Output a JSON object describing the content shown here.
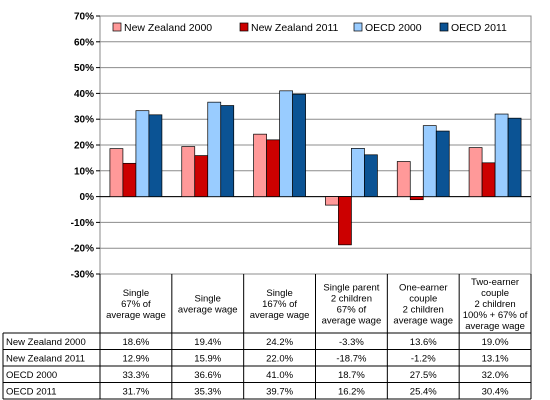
{
  "chart_data": {
    "type": "bar",
    "title": "",
    "xlabel": "",
    "ylabel": "",
    "ylim": [
      -30,
      70
    ],
    "yticks": [
      "-30%",
      "-20%",
      "-10%",
      "0%",
      "10%",
      "20%",
      "30%",
      "40%",
      "50%",
      "60%",
      "70%"
    ],
    "grid": "horizontal",
    "legend_position": "top",
    "categories": [
      [
        "Single",
        "67% of",
        "average wage"
      ],
      [
        "Single",
        "average wage"
      ],
      [
        "Single",
        "167% of",
        "average wage"
      ],
      [
        "Single parent",
        "2 children",
        "67% of",
        "average wage"
      ],
      [
        "One-earner",
        "couple",
        "2 children",
        "average wage"
      ],
      [
        "Two-earner",
        "couple",
        "2 children",
        "100% + 67% of",
        "average wage"
      ]
    ],
    "series": [
      {
        "name": "New Zealand 2000",
        "color": "#ff9999",
        "values": [
          18.6,
          19.4,
          24.2,
          -3.3,
          13.6,
          19.0
        ],
        "labels": [
          "18.6%",
          "19.4%",
          "24.2%",
          "-3.3%",
          "13.6%",
          "19.0%"
        ]
      },
      {
        "name": "New Zealand 2011",
        "color": "#cc0000",
        "values": [
          12.9,
          15.9,
          22.0,
          -18.7,
          -1.2,
          13.1
        ],
        "labels": [
          "12.9%",
          "15.9%",
          "22.0%",
          "-18.7%",
          "-1.2%",
          "13.1%"
        ]
      },
      {
        "name": "OECD 2000",
        "color": "#99ccff",
        "values": [
          33.3,
          36.6,
          41.0,
          18.7,
          27.5,
          32.0
        ],
        "labels": [
          "33.3%",
          "36.6%",
          "41.0%",
          "18.7%",
          "27.5%",
          "32.0%"
        ]
      },
      {
        "name": "OECD 2011",
        "color": "#0b5394",
        "values": [
          31.7,
          35.3,
          39.7,
          16.2,
          25.4,
          30.4
        ],
        "labels": [
          "31.7%",
          "35.3%",
          "39.7%",
          "16.2%",
          "25.4%",
          "30.4%"
        ]
      }
    ]
  }
}
